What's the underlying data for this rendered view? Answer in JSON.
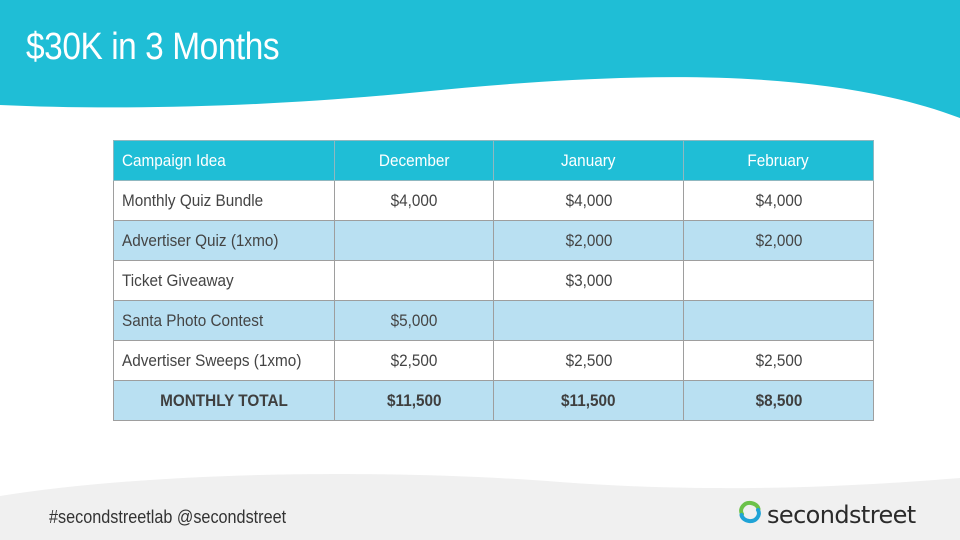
{
  "slide": {
    "title": "$30K in 3 Months",
    "colors": {
      "header_teal": "#1fbed6",
      "row_blue": "#b9e0f2",
      "footer_gray": "#f0f0f0"
    }
  },
  "table": {
    "headers": [
      "Campaign Idea",
      "December",
      "January",
      "February"
    ],
    "rows": [
      {
        "cells": [
          "Monthly Quiz Bundle",
          "$4,000",
          "$4,000",
          "$4,000"
        ]
      },
      {
        "cells": [
          "Advertiser Quiz (1xmo)",
          "",
          "$2,000",
          "$2,000"
        ]
      },
      {
        "cells": [
          "Ticket Giveaway",
          "",
          "$3,000",
          ""
        ]
      },
      {
        "cells": [
          "Santa Photo Contest",
          "$5,000",
          "",
          ""
        ]
      },
      {
        "cells": [
          "Advertiser Sweeps (1xmo)",
          "$2,500",
          "$2,500",
          "$2,500"
        ]
      }
    ],
    "total": {
      "cells": [
        "MONTHLY TOTAL",
        "$11,500",
        "$11,500",
        "$8,500"
      ]
    }
  },
  "footer": {
    "hashtags": "#secondstreetlab  @secondstreet",
    "logo_text": "secondstreet",
    "logo_icon": "secondstreet-swirl-icon"
  }
}
